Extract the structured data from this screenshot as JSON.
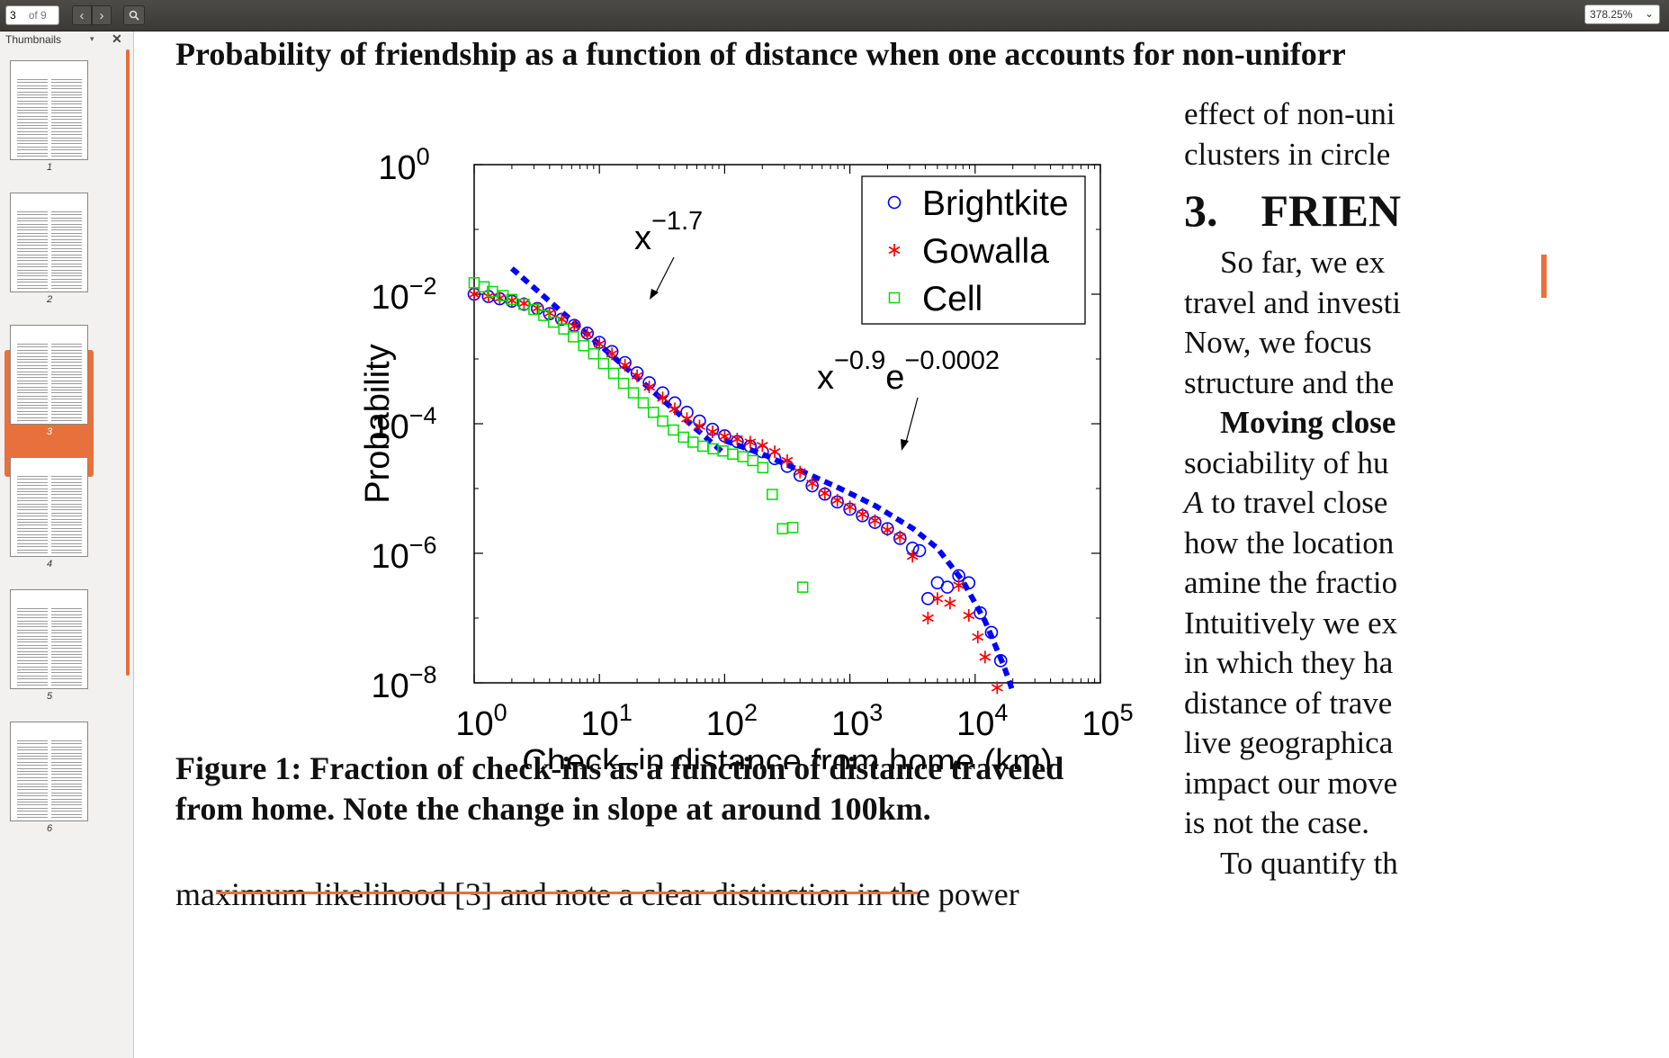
{
  "toolbar": {
    "page_current": "3",
    "page_total": "of 9",
    "zoom": "378.25%"
  },
  "sidebar": {
    "title": "Thumbnails",
    "thumbnails": [
      "1",
      "2",
      "3",
      "4",
      "5",
      "6"
    ],
    "selected": "3"
  },
  "document": {
    "section_heading": "Probability of friendship as a function of distance when one accounts for non-uniforr",
    "caption": "Figure 1: Fraction of check-ins as a function of distance traveled from home. Note the change in slope at around 100km.",
    "bottom_line": "maximum likelihood [3] and note a clear distinction in the power",
    "right_col": {
      "l1": "effect of non-uni",
      "l2": "clusters in circle",
      "section_num": "3.",
      "section_title": "FRIEN",
      "l3": "So far, we ex",
      "l4": "travel and investi",
      "l5": "Now, we focus",
      "l6": "structure and the",
      "l7_bold": "Moving close",
      "l8": "sociability of hu",
      "l9_italic": "A",
      "l9_rest": " to travel close",
      "l10": "how the location",
      "l11": "amine the fractio",
      "l12": "Intuitively we ex",
      "l13": "in which they ha",
      "l14": "distance of trave",
      "l15": "live geographica",
      "l16": "impact our move",
      "l17": "is not the case.",
      "l18": "To quantify th"
    }
  },
  "chart_data": {
    "type": "scatter",
    "xlabel": "Check–in distance from home (km)",
    "ylabel": "Probability",
    "xscale": "log",
    "yscale": "log",
    "xlim": [
      1,
      100000
    ],
    "ylim": [
      1e-08,
      1
    ],
    "x_ticks": [
      {
        "base": "10",
        "exp": "0"
      },
      {
        "base": "10",
        "exp": "1"
      },
      {
        "base": "10",
        "exp": "2"
      },
      {
        "base": "10",
        "exp": "3"
      },
      {
        "base": "10",
        "exp": "4"
      },
      {
        "base": "10",
        "exp": "5"
      }
    ],
    "y_ticks": [
      {
        "base": "10",
        "exp": "0"
      },
      {
        "base": "10",
        "exp": "−2"
      },
      {
        "base": "10",
        "exp": "−4"
      },
      {
        "base": "10",
        "exp": "−6"
      },
      {
        "base": "10",
        "exp": "−8"
      }
    ],
    "legend_position": "top-right",
    "annotations": [
      {
        "base": "x",
        "exp1": "−1.7",
        "mid": "",
        "exp2": ""
      },
      {
        "base": "x",
        "exp1": "−0.9",
        "mid": "e",
        "exp2": "−0.0002"
      }
    ],
    "series": [
      {
        "name": "Brightkite",
        "marker": "circle",
        "color": "#0000ff",
        "x": [
          1,
          1.3,
          1.6,
          2,
          2.5,
          3.2,
          4,
          5,
          6.3,
          8,
          10,
          12.6,
          16,
          20,
          25,
          32,
          40,
          50,
          63,
          80,
          100,
          126,
          160,
          200,
          251,
          316,
          400,
          500,
          631,
          794,
          1000,
          1259,
          1585,
          1995,
          2512,
          3162,
          3600,
          4200,
          5000,
          6000,
          7400,
          8900,
          11000,
          13500,
          16000
        ],
        "y": [
          0.01,
          0.0092,
          0.0085,
          0.0078,
          0.007,
          0.006,
          0.005,
          0.0041,
          0.0033,
          0.0025,
          0.0018,
          0.0013,
          0.00088,
          0.00061,
          0.00043,
          0.0003,
          0.00021,
          0.00015,
          0.00011,
          8.2e-05,
          6.5e-05,
          5.3e-05,
          4.5e-05,
          3.7e-05,
          2.9e-05,
          2.2e-05,
          1.6e-05,
          1.1e-05,
          8.2e-06,
          6.2e-06,
          4.8e-06,
          3.8e-06,
          3e-06,
          2.4e-06,
          1.7e-06,
          1.2e-06,
          1.1e-06,
          2e-07,
          3.5e-07,
          3e-07,
          4.5e-07,
          3.5e-07,
          1.2e-07,
          6e-08,
          2.2e-08
        ]
      },
      {
        "name": "Gowalla",
        "marker": "star",
        "color": "#ff0000",
        "x": [
          1,
          1.3,
          1.6,
          2,
          2.5,
          3.2,
          4,
          5,
          6.3,
          8,
          10,
          12.6,
          16,
          20,
          25,
          32,
          40,
          50,
          63,
          80,
          100,
          126,
          160,
          200,
          251,
          316,
          400,
          500,
          631,
          794,
          1000,
          1259,
          1585,
          1995,
          2512,
          3162,
          4200,
          5000,
          6300,
          7400,
          8900,
          10500,
          12000,
          15000
        ],
        "y": [
          0.01,
          0.0093,
          0.0087,
          0.008,
          0.0072,
          0.0061,
          0.0051,
          0.0041,
          0.0032,
          0.0024,
          0.0017,
          0.0012,
          0.0008,
          0.00055,
          0.00037,
          0.00025,
          0.00017,
          0.00012,
          9.2e-05,
          7.5e-05,
          6.4e-05,
          5.8e-05,
          5.2e-05,
          4.6e-05,
          3.7e-05,
          2.7e-05,
          1.8e-05,
          1.2e-05,
          8.5e-06,
          6.6e-06,
          5.2e-06,
          4e-06,
          3.2e-06,
          2.3e-06,
          1.8e-06,
          9e-07,
          1e-07,
          2e-07,
          1.7e-07,
          3.2e-07,
          1.1e-07,
          5.1e-08,
          2.5e-08,
          8.4e-09
        ]
      },
      {
        "name": "Cell",
        "marker": "square",
        "color": "#00dd00",
        "x": [
          1,
          1.2,
          1.4,
          1.7,
          2,
          2.5,
          3,
          3.6,
          4.3,
          5.2,
          6.2,
          7.5,
          9,
          10.8,
          13,
          15.6,
          18.7,
          22.4,
          27,
          32,
          39,
          47,
          56,
          67,
          81,
          97,
          116,
          140,
          168,
          202,
          240,
          290,
          350,
          420
        ],
        "y": [
          0.015,
          0.013,
          0.011,
          0.0095,
          0.0083,
          0.007,
          0.0058,
          0.0047,
          0.0037,
          0.0029,
          0.0022,
          0.0016,
          0.0012,
          0.00085,
          0.0006,
          0.00042,
          0.0003,
          0.00021,
          0.00015,
          0.00011,
          8e-05,
          6.2e-05,
          5.2e-05,
          4.5e-05,
          4.1e-05,
          3.8e-05,
          3.4e-05,
          3.1e-05,
          2.7e-05,
          2.1e-05,
          8.1e-06,
          2.4e-06,
          2.5e-06,
          3e-07
        ]
      },
      {
        "name": "",
        "marker": "dashed-line",
        "color": "#0000ff",
        "role": "fit x^-1.7",
        "x": [
          2,
          100
        ],
        "y": [
          0.025,
          3.43e-05
        ]
      },
      {
        "name": "",
        "marker": "dashed-line",
        "color": "#0000ff",
        "role": "fit x^-0.9 e^-0.0002x",
        "x": [
          100,
          200,
          400,
          800,
          1600,
          3200,
          5000,
          8000,
          12000,
          17000,
          20000
        ],
        "y": [
          5.5e-05,
          3.4e-05,
          1.9e-05,
          1.04e-05,
          5.4e-06,
          2.4e-06,
          1.2e-06,
          3.7e-07,
          9e-08,
          1.8e-08,
          7.3e-09
        ]
      }
    ]
  }
}
